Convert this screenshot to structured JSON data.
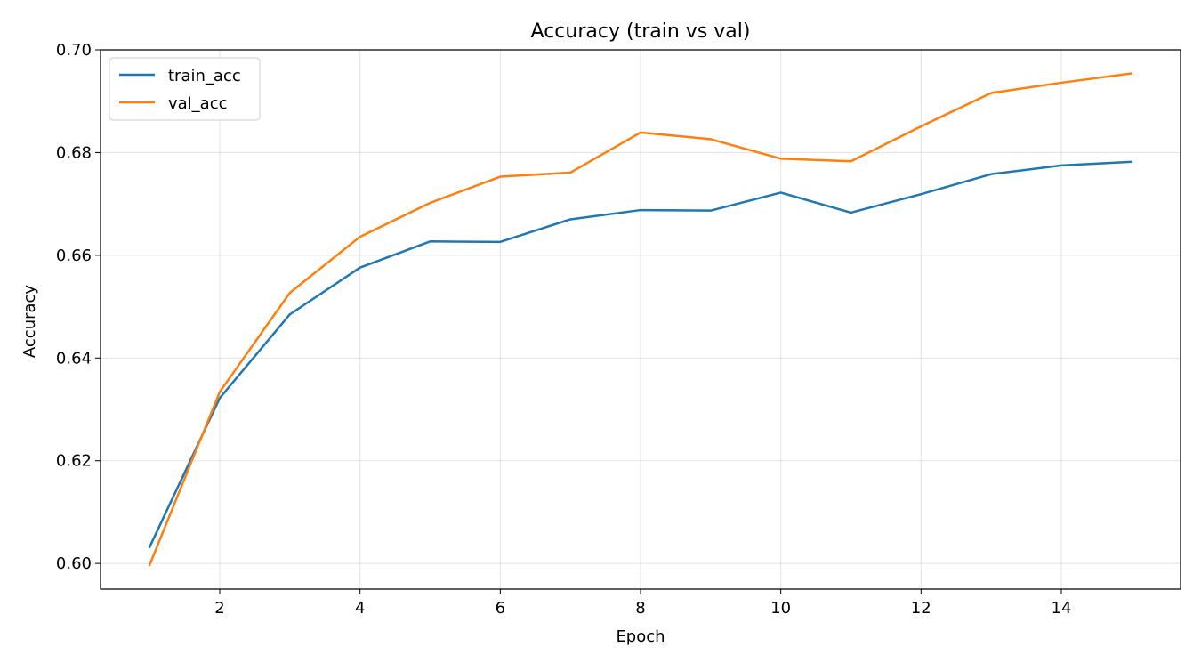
{
  "chart_data": {
    "type": "line",
    "title": "Accuracy (train vs val)",
    "xlabel": "Epoch",
    "ylabel": "Accuracy",
    "xlim": [
      0.3,
      15.7
    ],
    "ylim": [
      0.595,
      0.7
    ],
    "xticks": [
      2,
      4,
      6,
      8,
      10,
      12,
      14
    ],
    "yticks": [
      0.6,
      0.62,
      0.64,
      0.66,
      0.68,
      0.7
    ],
    "ytick_labels": [
      "0.60",
      "0.62",
      "0.64",
      "0.66",
      "0.68",
      "0.70"
    ],
    "grid": true,
    "legend_position": "top-left",
    "x": [
      1,
      2,
      3,
      4,
      5,
      6,
      7,
      8,
      9,
      10,
      11,
      12,
      13,
      14,
      15
    ],
    "series": [
      {
        "name": "train_acc",
        "color": "#1f77b4",
        "values": [
          0.6032,
          0.6322,
          0.6485,
          0.6576,
          0.6627,
          0.6626,
          0.667,
          0.6688,
          0.6687,
          0.6722,
          0.6683,
          0.6719,
          0.6758,
          0.6775,
          0.6782
        ]
      },
      {
        "name": "val_acc",
        "color": "#ff7f0e",
        "values": [
          0.5997,
          0.6334,
          0.6527,
          0.6636,
          0.6702,
          0.6753,
          0.6761,
          0.6839,
          0.6826,
          0.6788,
          0.6783,
          0.6851,
          0.6916,
          0.6936,
          0.6954
        ]
      }
    ]
  }
}
